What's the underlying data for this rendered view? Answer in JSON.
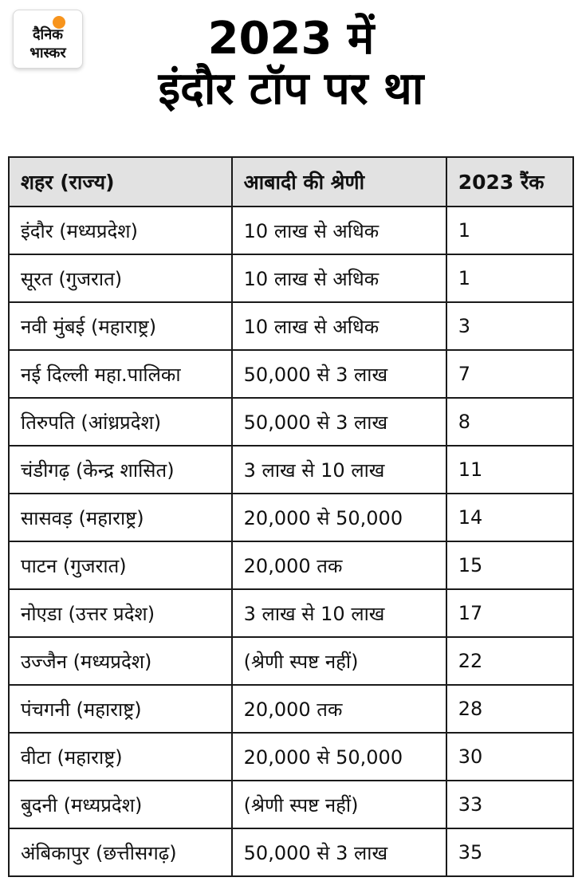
{
  "brand": {
    "name": "Dainik Bhaskar",
    "logo_line1": "दैनिक",
    "logo_line2": "भास्कर",
    "accent_color": "#f7941d"
  },
  "title": {
    "line1": "2023 में",
    "line2": "इंदौर टॉप पर था"
  },
  "chart_data": {
    "type": "table",
    "title": "2023 में इंदौर टॉप पर था",
    "columns": [
      "शहर (राज्य)",
      "आबादी की श्रेणी",
      "2023 रैंक"
    ],
    "rows": [
      [
        "इंदौर (मध्यप्रदेश)",
        "10 लाख से अधिक",
        "1"
      ],
      [
        "सूरत (गुजरात)",
        "10 लाख से अधिक",
        "1"
      ],
      [
        "नवी मुंबई (महाराष्ट्र)",
        "10 लाख से अधिक",
        "3"
      ],
      [
        "नई दिल्ली महा.पालिका",
        "50,000 से 3 लाख",
        "7"
      ],
      [
        "तिरुपति (आंध्रप्रदेश)",
        "50,000 से 3 लाख",
        "8"
      ],
      [
        "चंडीगढ़ (केन्द्र शासित)",
        "3 लाख से 10 लाख",
        "11"
      ],
      [
        "सासवड़ (महाराष्ट्र)",
        "20,000 से 50,000",
        "14"
      ],
      [
        "पाटन (गुजरात)",
        "20,000 तक",
        "15"
      ],
      [
        "नोएडा (उत्तर प्रदेश)",
        "3 लाख से 10 लाख",
        "17"
      ],
      [
        "उज्जैन (मध्यप्रदेश)",
        "(श्रेणी स्पष्ट नहीं)",
        "22"
      ],
      [
        "पंचगनी (महाराष्ट्र)",
        "20,000 तक",
        "28"
      ],
      [
        "वीटा (महाराष्ट्र)",
        "20,000 से 50,000",
        "30"
      ],
      [
        "बुदनी (मध्यप्रदेश)",
        "(श्रेणी स्पष्ट नहीं)",
        "33"
      ],
      [
        "अंबिकापुर (छत्तीसगढ़)",
        "50,000 से 3 लाख",
        "35"
      ]
    ],
    "layout": {
      "header_background": "#e2e2e2",
      "border_color": "#1a1a1a",
      "grid": true
    }
  }
}
